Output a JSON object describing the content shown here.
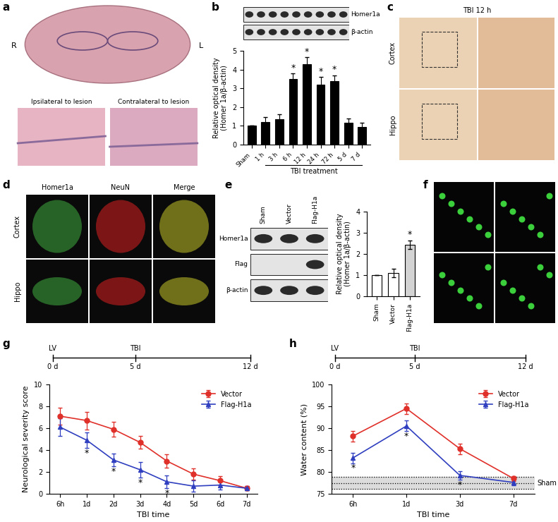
{
  "panels": [
    {
      "label": "a",
      "type": "image",
      "side_labels": [
        "R",
        "L"
      ],
      "captions": [
        "Ipsilateral to lesion",
        "Contralateral to lesion"
      ]
    },
    {
      "label": "c",
      "type": "image",
      "title": "TBI 12 h",
      "rows": [
        "Cortex",
        "Hippo"
      ]
    },
    {
      "label": "d",
      "type": "image",
      "columns": [
        "Homer1a",
        "NeuN",
        "Merge"
      ],
      "rows": [
        "Cortex",
        "Hippo"
      ]
    },
    {
      "label": "f",
      "type": "image"
    }
  ],
  "chart_data": [
    {
      "label": "b",
      "type": "bar",
      "blot": {
        "rows": [
          "Homer1a",
          "β-actin"
        ]
      },
      "categories": [
        "Sham",
        "1 h",
        "3 h",
        "6 h",
        "12 h",
        "24 h",
        "72 h",
        "5 d",
        "7 d"
      ],
      "values": [
        1.0,
        1.2,
        1.35,
        3.5,
        4.3,
        3.2,
        3.4,
        1.15,
        0.95
      ],
      "errors": [
        0,
        0.25,
        0.25,
        0.3,
        0.35,
        0.4,
        0.3,
        0.25,
        0.2
      ],
      "marks": [
        null,
        null,
        null,
        "*",
        "*",
        "*",
        "*",
        null,
        null
      ],
      "color": "#000000",
      "y_label": "Relative optical density\n(Homer 1a/β-actin)",
      "x_label": "TBI treatment",
      "ylim": [
        0,
        5
      ],
      "yticks": [
        0,
        1,
        2,
        3,
        4,
        5
      ]
    },
    {
      "label": "e",
      "type": "bar",
      "blot": {
        "rows": [
          "Homer1a",
          "Flag",
          "β-actin"
        ]
      },
      "categories": [
        "Sham",
        "Vector",
        "Flag-H1a"
      ],
      "values": [
        1.0,
        1.1,
        2.45
      ],
      "errors": [
        0,
        0.2,
        0.2
      ],
      "marks": [
        null,
        null,
        "*"
      ],
      "colors": [
        "#ffffff",
        "#ffffff",
        "#d3d3d3"
      ],
      "y_label": "Relative optical density\n(Homer 1a/β-actin)",
      "ylim": [
        0,
        4
      ],
      "yticks": [
        0,
        1,
        2,
        3,
        4
      ]
    },
    {
      "label": "g",
      "type": "line",
      "timeline": {
        "xlim": [
          0,
          12
        ],
        "ticks": [
          {
            "value": 0,
            "label": "0 d",
            "event": "LV"
          },
          {
            "value": 5,
            "label": "5 d",
            "event": "TBI"
          },
          {
            "value": 12,
            "label": "12 d"
          }
        ]
      },
      "categories": [
        "6h",
        "1d",
        "2d",
        "3d",
        "4d",
        "5d",
        "6d",
        "7d"
      ],
      "x_label": "TBI time",
      "y_label": "Neurological severity score",
      "ylim": [
        0,
        10
      ],
      "yticks": [
        0,
        2,
        4,
        6,
        8,
        10
      ],
      "legend": "upper right",
      "series": [
        {
          "name": "Vector",
          "color": "#e0302a",
          "marker": "o",
          "values": [
            7.1,
            6.7,
            5.9,
            4.7,
            3.0,
            1.8,
            1.2,
            0.5
          ],
          "errors": [
            0.8,
            0.8,
            0.7,
            0.6,
            0.6,
            0.5,
            0.4,
            0.2
          ]
        },
        {
          "name": "Flag-H1a",
          "color": "#2f3fbf",
          "marker": "^",
          "values": [
            6.1,
            4.9,
            3.1,
            2.2,
            1.1,
            0.7,
            0.8,
            0.5
          ],
          "errors": [
            0.8,
            0.7,
            0.6,
            0.7,
            0.6,
            0.5,
            0.4,
            0.2
          ],
          "marks": [
            null,
            "*",
            "*",
            "*",
            "*",
            null,
            null,
            null
          ]
        }
      ]
    },
    {
      "label": "h",
      "type": "line",
      "timeline": {
        "xlim": [
          0,
          12
        ],
        "ticks": [
          {
            "value": 0,
            "label": "0 d",
            "event": "LV"
          },
          {
            "value": 5,
            "label": "5 d",
            "event": "TBI"
          },
          {
            "value": 12,
            "label": "12 d"
          }
        ]
      },
      "categories": [
        "6h",
        "1d",
        "3d",
        "7d"
      ],
      "x_label": "TBI time",
      "y_label": "Water content (%)",
      "ylim": [
        75,
        100
      ],
      "yticks": [
        75,
        80,
        85,
        90,
        95,
        100
      ],
      "legend": "upper right",
      "reference": {
        "label": "Sham",
        "value": 77.5,
        "low": 76.2,
        "high": 78.8
      },
      "series": [
        {
          "name": "Vector",
          "color": "#e0302a",
          "marker": "o",
          "values": [
            88.2,
            94.5,
            85.3,
            78.5
          ],
          "errors": [
            1.2,
            1.2,
            1.2,
            0.6
          ]
        },
        {
          "name": "Flag-H1a",
          "color": "#2f3fbf",
          "marker": "^",
          "values": [
            83.2,
            90.5,
            79.2,
            77.6
          ],
          "errors": [
            1.2,
            1.2,
            1.0,
            0.6
          ],
          "marks": [
            "*",
            "*",
            "*",
            null
          ]
        }
      ]
    }
  ]
}
